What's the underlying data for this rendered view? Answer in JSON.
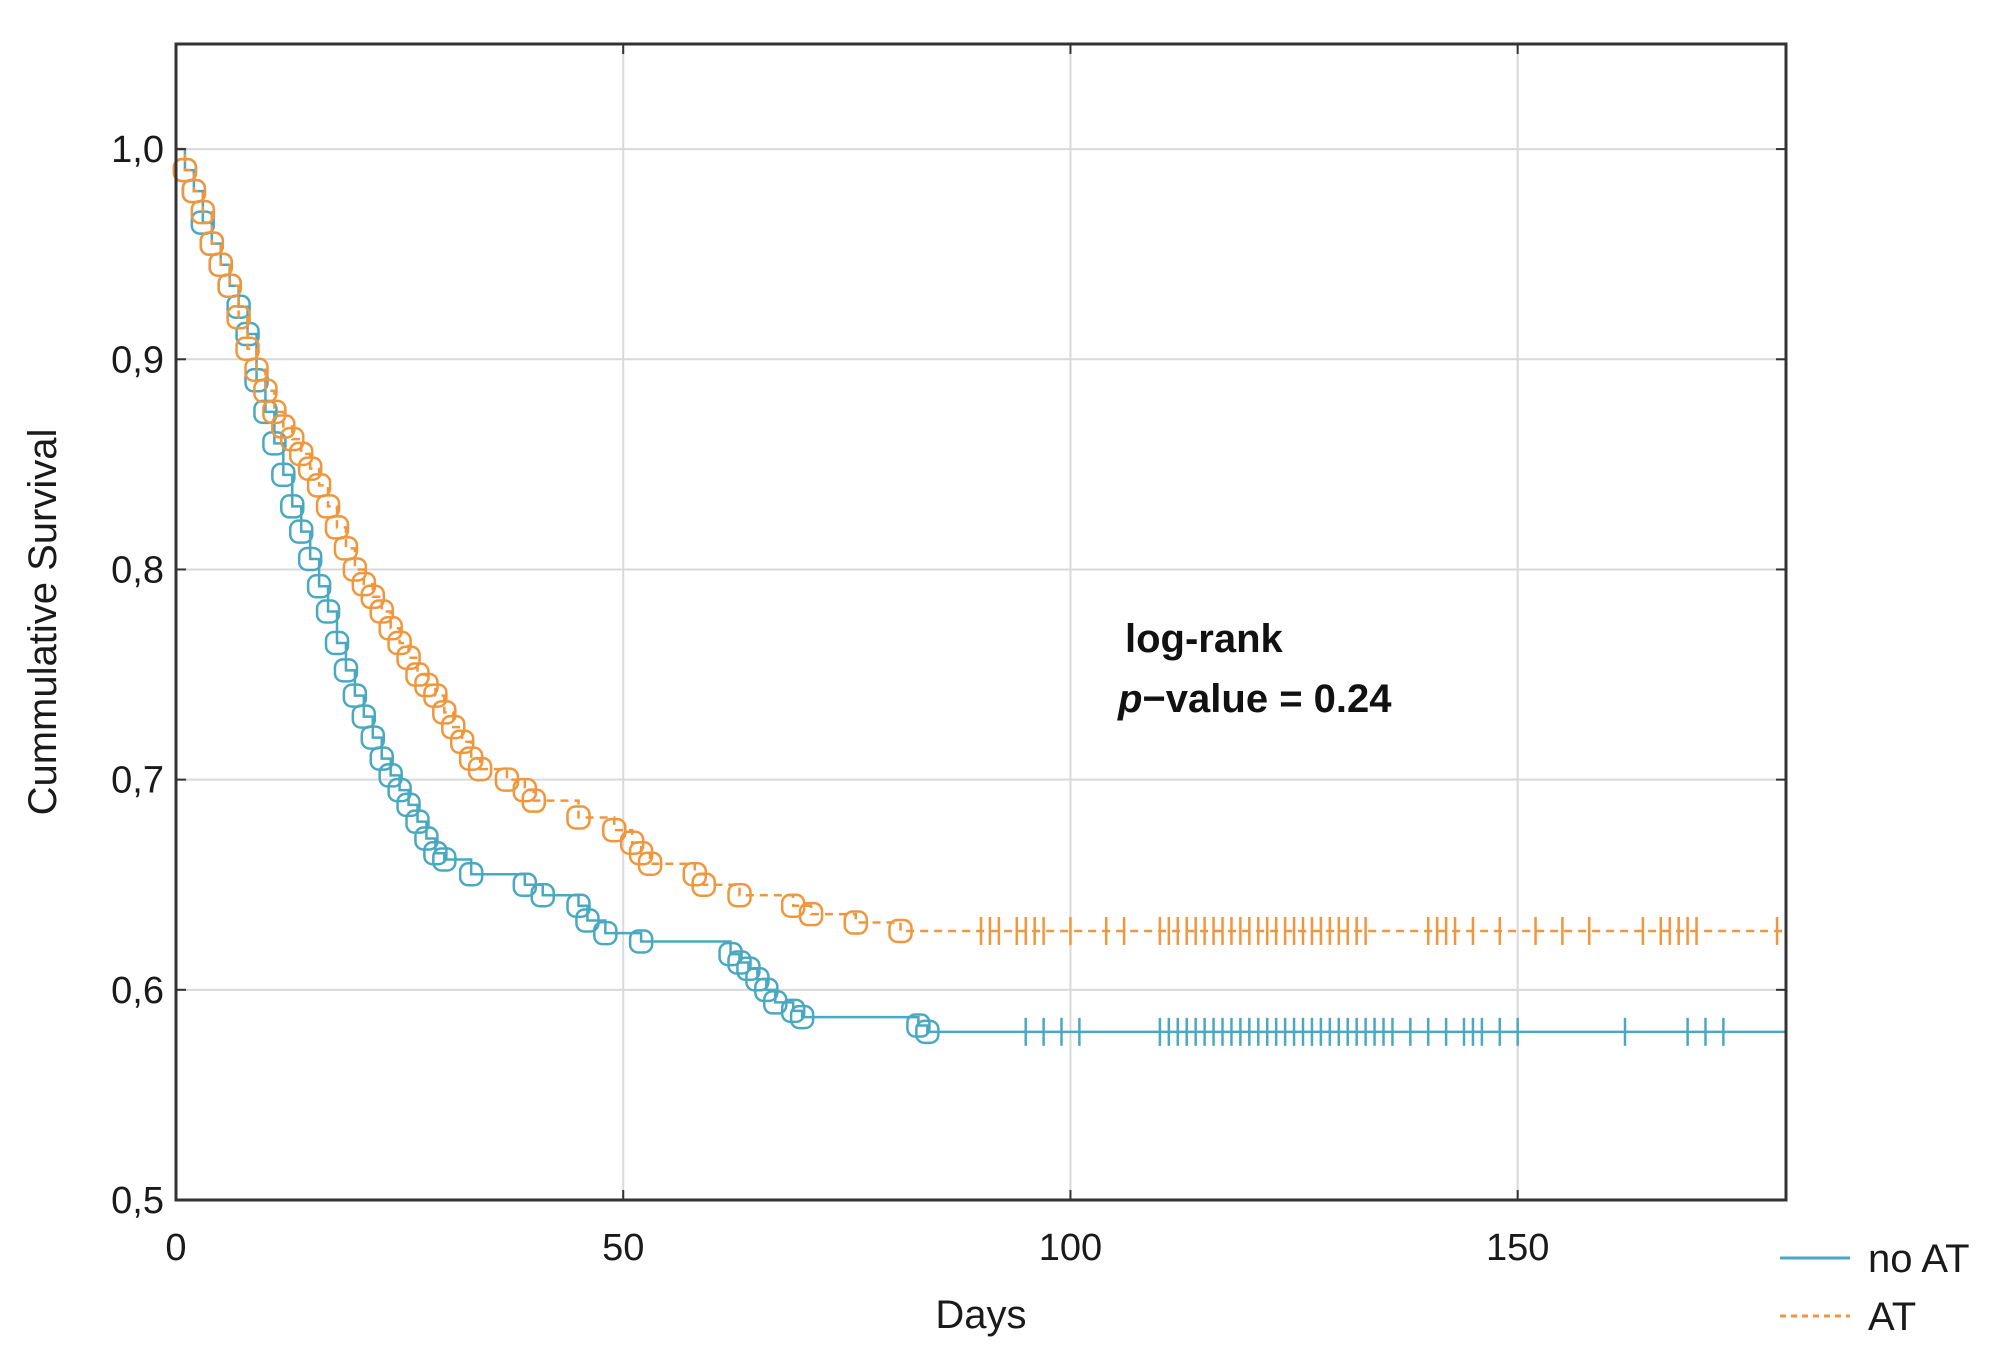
{
  "chart_data": {
    "type": "line",
    "subtype": "kaplan-meier",
    "title": "",
    "xlabel": "Days",
    "ylabel": "Cummulative Survival",
    "xlim": [
      0,
      180
    ],
    "ylim": [
      0.5,
      1.05
    ],
    "xticks": [
      0,
      50,
      100,
      150
    ],
    "xtick_labels": [
      "0",
      "50",
      "100",
      "150"
    ],
    "yticks": [
      0.5,
      0.6,
      0.7,
      0.8,
      0.9,
      1.0
    ],
    "ytick_labels": [
      "0,5",
      "0,6",
      "0,7",
      "0,8",
      "0,9",
      "1,0"
    ],
    "grid": true,
    "legend_position": "bottom-right",
    "annotation": {
      "line1": "log-rank",
      "line2_italic": "p",
      "line2_rest": "−value = 0.24",
      "x": 118,
      "y": 0.76
    },
    "series": [
      {
        "name": "no AT",
        "color": "#4aa8c0",
        "linestyle": "solid",
        "x": [
          0,
          1,
          2,
          3,
          4,
          5,
          6,
          7,
          8,
          9,
          10,
          11,
          12,
          13,
          14,
          15,
          16,
          17,
          18,
          19,
          20,
          21,
          22,
          23,
          24,
          25,
          26,
          27,
          28,
          29,
          30,
          33,
          39,
          41,
          45,
          46,
          48,
          52,
          62,
          63,
          64,
          65,
          66,
          67,
          69,
          70,
          83,
          84,
          180
        ],
        "y": [
          1.0,
          0.99,
          0.98,
          0.965,
          0.955,
          0.945,
          0.935,
          0.925,
          0.912,
          0.89,
          0.875,
          0.86,
          0.845,
          0.83,
          0.818,
          0.805,
          0.792,
          0.78,
          0.765,
          0.752,
          0.74,
          0.73,
          0.72,
          0.71,
          0.702,
          0.695,
          0.688,
          0.68,
          0.672,
          0.665,
          0.662,
          0.655,
          0.65,
          0.645,
          0.64,
          0.633,
          0.627,
          0.623,
          0.617,
          0.613,
          0.61,
          0.605,
          0.6,
          0.594,
          0.59,
          0.587,
          0.583,
          0.58,
          0.58
        ],
        "events_x": [
          1,
          2,
          3,
          4,
          5,
          6,
          7,
          8,
          9,
          10,
          11,
          12,
          13,
          14,
          15,
          16,
          17,
          18,
          19,
          20,
          21,
          22,
          23,
          24,
          25,
          26,
          27,
          28,
          29,
          30,
          33,
          39,
          41,
          45,
          46,
          48,
          52,
          62,
          63,
          64,
          65,
          66,
          67,
          69,
          70,
          83,
          84
        ],
        "censor_x": [
          95,
          97,
          99,
          101,
          110,
          111,
          112,
          113,
          114,
          115,
          116,
          117,
          118,
          119,
          120,
          121,
          122,
          123,
          124,
          125,
          126,
          127,
          128,
          129,
          130,
          131,
          132,
          133,
          134,
          135,
          136,
          138,
          140,
          142,
          144,
          145,
          146,
          148,
          150,
          162,
          169,
          171,
          173
        ]
      },
      {
        "name": "AT",
        "color": "#f0963c",
        "linestyle": "dashed",
        "x": [
          0,
          1,
          2,
          3,
          4,
          5,
          6,
          7,
          8,
          9,
          10,
          11,
          12,
          13,
          14,
          15,
          16,
          17,
          18,
          19,
          20,
          21,
          22,
          23,
          24,
          25,
          26,
          27,
          28,
          29,
          30,
          31,
          32,
          33,
          34,
          37,
          39,
          40,
          45,
          49,
          51,
          52,
          53,
          58,
          59,
          63,
          69,
          71,
          76,
          81,
          180
        ],
        "y": [
          1.0,
          0.99,
          0.98,
          0.97,
          0.955,
          0.945,
          0.935,
          0.92,
          0.905,
          0.895,
          0.885,
          0.875,
          0.868,
          0.862,
          0.855,
          0.848,
          0.84,
          0.83,
          0.82,
          0.81,
          0.8,
          0.793,
          0.787,
          0.78,
          0.772,
          0.765,
          0.758,
          0.75,
          0.745,
          0.74,
          0.732,
          0.725,
          0.718,
          0.71,
          0.705,
          0.7,
          0.695,
          0.69,
          0.682,
          0.676,
          0.67,
          0.665,
          0.66,
          0.655,
          0.65,
          0.645,
          0.64,
          0.636,
          0.632,
          0.628,
          0.628
        ],
        "events_x": [
          1,
          2,
          3,
          4,
          5,
          6,
          7,
          8,
          9,
          10,
          11,
          12,
          13,
          14,
          15,
          16,
          17,
          18,
          19,
          20,
          21,
          22,
          23,
          24,
          25,
          26,
          27,
          28,
          29,
          30,
          31,
          32,
          33,
          34,
          37,
          39,
          40,
          45,
          49,
          51,
          52,
          53,
          58,
          59,
          63,
          69,
          71,
          76,
          81
        ],
        "censor_x": [
          90,
          91,
          92,
          94,
          95,
          96,
          97,
          100,
          104,
          106,
          110,
          111,
          112,
          113,
          114,
          115,
          116,
          117,
          118,
          119,
          120,
          121,
          122,
          123,
          124,
          125,
          126,
          127,
          128,
          129,
          130,
          131,
          132,
          133,
          140,
          141,
          142,
          143,
          145,
          148,
          152,
          155,
          158,
          164,
          166,
          167,
          168,
          169,
          170,
          179
        ]
      }
    ]
  }
}
